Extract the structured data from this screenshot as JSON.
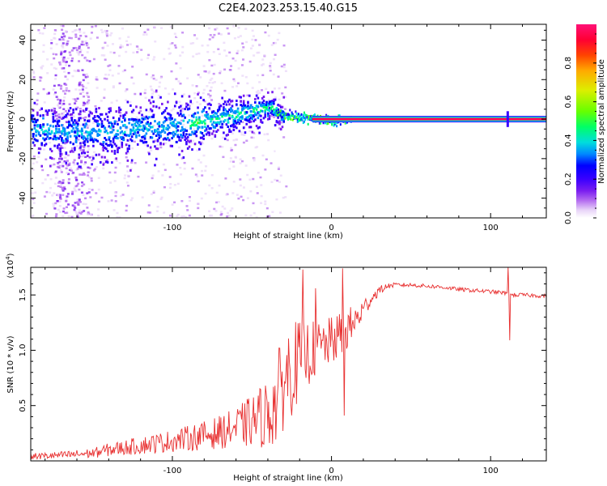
{
  "title": "C2E4.2023.253.15.40.G15",
  "chart_data": [
    {
      "type": "heatmap",
      "xlabel": "Height of straight line (km)",
      "ylabel": "Frequency (Hz)",
      "xlim": [
        -189,
        135
      ],
      "ylim": [
        -50,
        48
      ],
      "x_ticks": [
        -100,
        0,
        100
      ],
      "y_ticks": [
        -40,
        -20,
        0,
        20,
        40
      ],
      "colorbar": {
        "label": "Normalized spectral amplitude",
        "range": [
          0.0,
          1.0
        ],
        "ticks": [
          "0.0",
          "0.2",
          "0.4",
          "0.6",
          "0.8"
        ],
        "colors": [
          "#ffffff",
          "#e8d4f8",
          "#b46cf0",
          "#7a1ef0",
          "#3a00ff",
          "#0000ff",
          "#0088ff",
          "#00dddd",
          "#00ff66",
          "#66ff00",
          "#ddee00",
          "#ffaa00",
          "#ff4400",
          "#ff0033",
          "#ff1177"
        ]
      },
      "ridge": [
        {
          "x": -185,
          "f": -5
        },
        {
          "x": -160,
          "f": -7
        },
        {
          "x": -140,
          "f": -6
        },
        {
          "x": -120,
          "f": -5
        },
        {
          "x": -100,
          "f": -4
        },
        {
          "x": -80,
          "f": -1
        },
        {
          "x": -60,
          "f": 2
        },
        {
          "x": -45,
          "f": 5
        },
        {
          "x": -38,
          "f": 6
        },
        {
          "x": -32,
          "f": 2
        },
        {
          "x": -20,
          "f": 1
        },
        {
          "x": -10,
          "f": 0.5
        },
        {
          "x": 0,
          "f": -1
        },
        {
          "x": 10,
          "f": 0
        },
        {
          "x": 135,
          "f": 0
        }
      ]
    },
    {
      "type": "line",
      "xlabel": "Height of straight line (km)",
      "ylabel": "SNR (10 * v/v)",
      "multiplier": "(x10",
      "multiplier_exp": "4",
      "multiplier_close": ")",
      "xlim": [
        -189,
        135
      ],
      "ylim": [
        0,
        17500
      ],
      "x_ticks": [
        -100,
        0,
        100
      ],
      "y_ticks": [
        {
          "v": 5000,
          "label": "0.5"
        },
        {
          "v": 10000,
          "label": "1.0"
        },
        {
          "v": 15000,
          "label": "1.5"
        }
      ],
      "color": "#e83030",
      "series": [
        {
          "x": [
            -189,
            -170,
            -150,
            -140,
            -120,
            -100,
            -80,
            -70,
            -60,
            -50,
            -40,
            -35,
            -30,
            -25,
            -20,
            -15,
            -10,
            -5,
            0,
            5,
            10,
            15,
            20,
            25,
            30,
            35,
            40,
            50,
            60,
            70,
            80,
            90,
            100,
            108,
            110,
            112,
            115,
            120,
            135
          ],
          "y": [
            400,
            500,
            700,
            1000,
            1400,
            1800,
            2300,
            2600,
            3000,
            3600,
            4300,
            5200,
            7300,
            8400,
            9200,
            9700,
            10100,
            10400,
            10800,
            11300,
            11900,
            12600,
            13700,
            14700,
            15400,
            15800,
            15900,
            15900,
            15800,
            15700,
            15500,
            15400,
            15300,
            15200,
            15100,
            15000,
            15000,
            15000,
            14900
          ],
          "noise": [
            300,
            350,
            450,
            600,
            800,
            1000,
            1300,
            1500,
            1800,
            2400,
            3200,
            4000,
            4500,
            4300,
            3600,
            3000,
            2600,
            2400,
            2200,
            2100,
            1900,
            1600,
            1000,
            600,
            400,
            250,
            200,
            180,
            180,
            180,
            180,
            180,
            180,
            180,
            180,
            180,
            180,
            180,
            180
          ]
        }
      ],
      "annotations": [
        {
          "x": -18,
          "y": 17300
        },
        {
          "x": -10,
          "y": 15600
        },
        {
          "x": 7,
          "y": 17400
        },
        {
          "x": 8,
          "y": 4100
        },
        {
          "x": 111,
          "y": 17500
        },
        {
          "x": 112,
          "y": 10900
        }
      ]
    }
  ]
}
